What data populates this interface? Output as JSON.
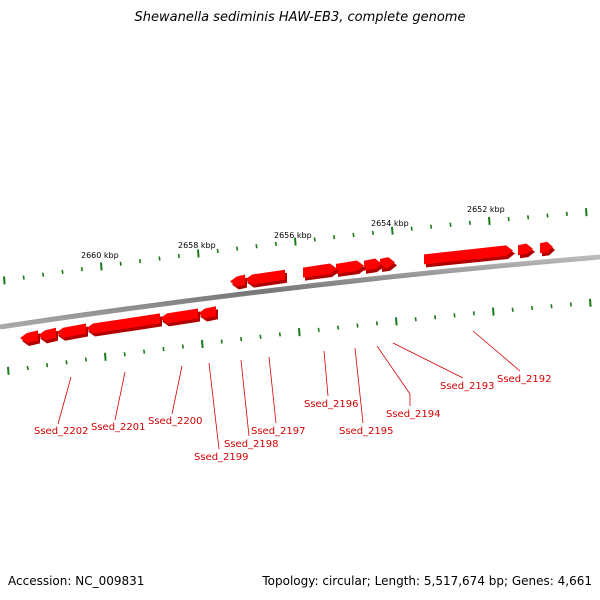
{
  "title": "Shewanella sediminis HAW-EB3, complete genome",
  "footer": {
    "accession": "Accession: NC_009831",
    "summary": "Topology: circular; Length: 5,517,674 bp; Genes: 4,661"
  },
  "colors": {
    "gene": "#ff0000",
    "gene_shadow": "#b00000",
    "label": "#d40000",
    "tick": "#1a7a1a",
    "backbone": "#888888"
  },
  "kbp_labels": [
    "2652 kbp",
    "2654 kbp",
    "2656 kbp",
    "2658 kbp",
    "2660 kbp"
  ],
  "genes": [
    {
      "label": "Ssed_2192"
    },
    {
      "label": "Ssed_2193"
    },
    {
      "label": "Ssed_2194"
    },
    {
      "label": "Ssed_2195"
    },
    {
      "label": "Ssed_2196"
    },
    {
      "label": "Ssed_2197"
    },
    {
      "label": "Ssed_2198"
    },
    {
      "label": "Ssed_2199"
    },
    {
      "label": "Ssed_2200"
    },
    {
      "label": "Ssed_2201"
    },
    {
      "label": "Ssed_2202"
    }
  ]
}
